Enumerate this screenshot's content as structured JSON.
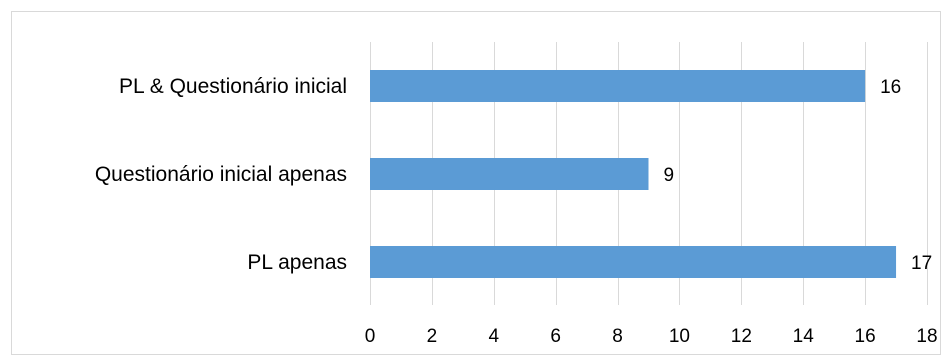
{
  "chart_data": {
    "type": "bar",
    "orientation": "horizontal",
    "title": "",
    "xlabel": "",
    "ylabel": "",
    "categories": [
      "PL & Questionário inicial",
      "Questionário inicial apenas",
      "PL apenas"
    ],
    "values": [
      16,
      9,
      17
    ],
    "data_labels": [
      "16",
      "9",
      "17"
    ],
    "xlim": [
      0,
      18
    ],
    "x_ticks": [
      "0",
      "2",
      "4",
      "6",
      "8",
      "10",
      "12",
      "14",
      "16",
      "18"
    ],
    "grid": "vertical",
    "legend": "none",
    "bar_color": "#5b9bd5",
    "grid_color": "#d9d9d9",
    "border_color": "#d9d9d9"
  }
}
